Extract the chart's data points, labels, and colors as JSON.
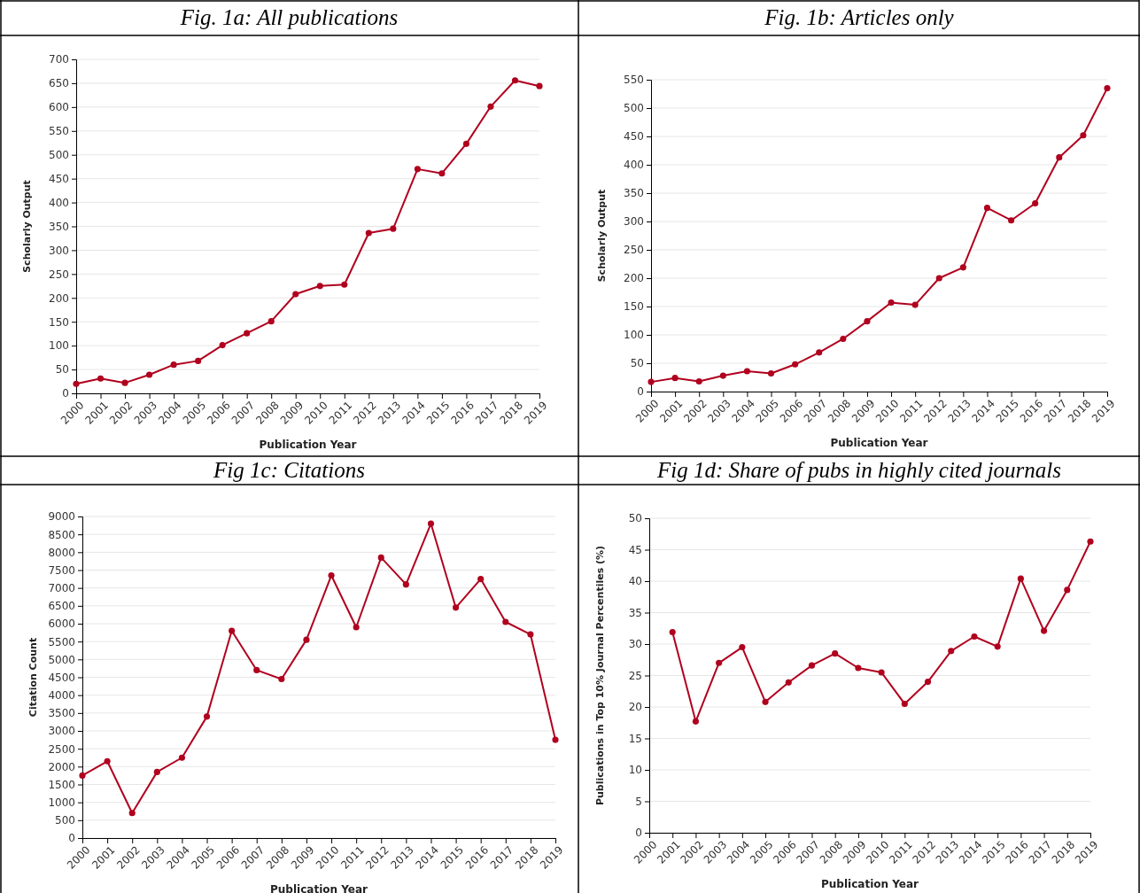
{
  "chart_data": [
    {
      "type": "line",
      "title": "Fig. 1a: All publications",
      "xlabel": "Publication Year",
      "ylabel": "Scholarly Output",
      "categories": [
        "2000",
        "2001",
        "2002",
        "2003",
        "2004",
        "2005",
        "2006",
        "2007",
        "2008",
        "2009",
        "2010",
        "2011",
        "2012",
        "2013",
        "2014",
        "2015",
        "2016",
        "2017",
        "2018",
        "2019"
      ],
      "series": [
        {
          "color": "#b0001e",
          "values": [
            20,
            31,
            22,
            39,
            60,
            68,
            101,
            126,
            151,
            208,
            225,
            228,
            336,
            345,
            470,
            461,
            523,
            601,
            656,
            644
          ]
        }
      ],
      "ylim": [
        0,
        700
      ],
      "yticks": [
        0,
        50,
        100,
        150,
        200,
        250,
        300,
        350,
        400,
        450,
        500,
        550,
        600,
        650,
        700
      ],
      "grid": "y",
      "marker": "circle",
      "line_style": "solid"
    },
    {
      "type": "line",
      "title": "Fig. 1b: Articles only",
      "xlabel": "Publication Year",
      "ylabel": "Scholarly Output",
      "categories": [
        "2000",
        "2001",
        "2002",
        "2003",
        "2004",
        "2005",
        "2006",
        "2007",
        "2008",
        "2009",
        "2010",
        "2011",
        "2012",
        "2013",
        "2014",
        "2015",
        "2016",
        "2017",
        "2018",
        "2019"
      ],
      "series": [
        {
          "color": "#b0001e",
          "values": [
            17,
            24,
            18,
            28,
            36,
            32,
            48,
            69,
            93,
            124,
            157,
            153,
            200,
            219,
            324,
            302,
            332,
            413,
            452,
            535
          ]
        }
      ],
      "ylim": [
        0,
        550
      ],
      "yticks": [
        0,
        50,
        100,
        150,
        200,
        250,
        300,
        350,
        400,
        450,
        500,
        550
      ],
      "grid": "y",
      "marker": "circle",
      "line_style": "solid"
    },
    {
      "type": "line",
      "title": "Fig 1c: Citations",
      "xlabel": "Publication Year",
      "ylabel": "Citation Count",
      "categories": [
        "2000",
        "2001",
        "2002",
        "2003",
        "2004",
        "2005",
        "2006",
        "2007",
        "2008",
        "2009",
        "2010",
        "2011",
        "2012",
        "2013",
        "2014",
        "2015",
        "2016",
        "2017",
        "2018",
        "2019"
      ],
      "series": [
        {
          "color": "#b0001e",
          "values": [
            1750,
            2150,
            700,
            1850,
            2250,
            3400,
            5800,
            4700,
            4450,
            5550,
            7350,
            5900,
            7850,
            7100,
            8800,
            6450,
            7250,
            6050,
            5700,
            2750
          ]
        }
      ],
      "ylim": [
        0,
        9000
      ],
      "yticks": [
        0,
        500,
        1000,
        1500,
        2000,
        2500,
        3000,
        3500,
        4000,
        4500,
        5000,
        5500,
        6000,
        6500,
        7000,
        7500,
        8000,
        8500,
        9000
      ],
      "grid": "y",
      "marker": "circle",
      "line_style": "solid"
    },
    {
      "type": "line",
      "title": "Fig 1d: Share of pubs in highly cited journals",
      "xlabel": "Publication Year",
      "ylabel": "Publications in Top 10% Journal Percentiles (%)",
      "categories": [
        "2000",
        "2001",
        "2002",
        "2003",
        "2004",
        "2005",
        "2006",
        "2007",
        "2008",
        "2009",
        "2010",
        "2011",
        "2012",
        "2013",
        "2014",
        "2015",
        "2016",
        "2017",
        "2018",
        "2019"
      ],
      "series": [
        {
          "color": "#b0001e",
          "values": [
            null,
            31.9,
            17.7,
            27.0,
            29.5,
            20.8,
            23.9,
            26.6,
            28.5,
            26.2,
            25.5,
            20.5,
            24.0,
            28.9,
            31.2,
            29.6,
            40.4,
            32.1,
            38.6,
            46.3
          ]
        }
      ],
      "ylim": [
        0,
        50
      ],
      "yticks": [
        0,
        5,
        10,
        15,
        20,
        25,
        30,
        35,
        40,
        45,
        50
      ],
      "grid": "y",
      "marker": "circle",
      "line_style": "solid"
    }
  ]
}
